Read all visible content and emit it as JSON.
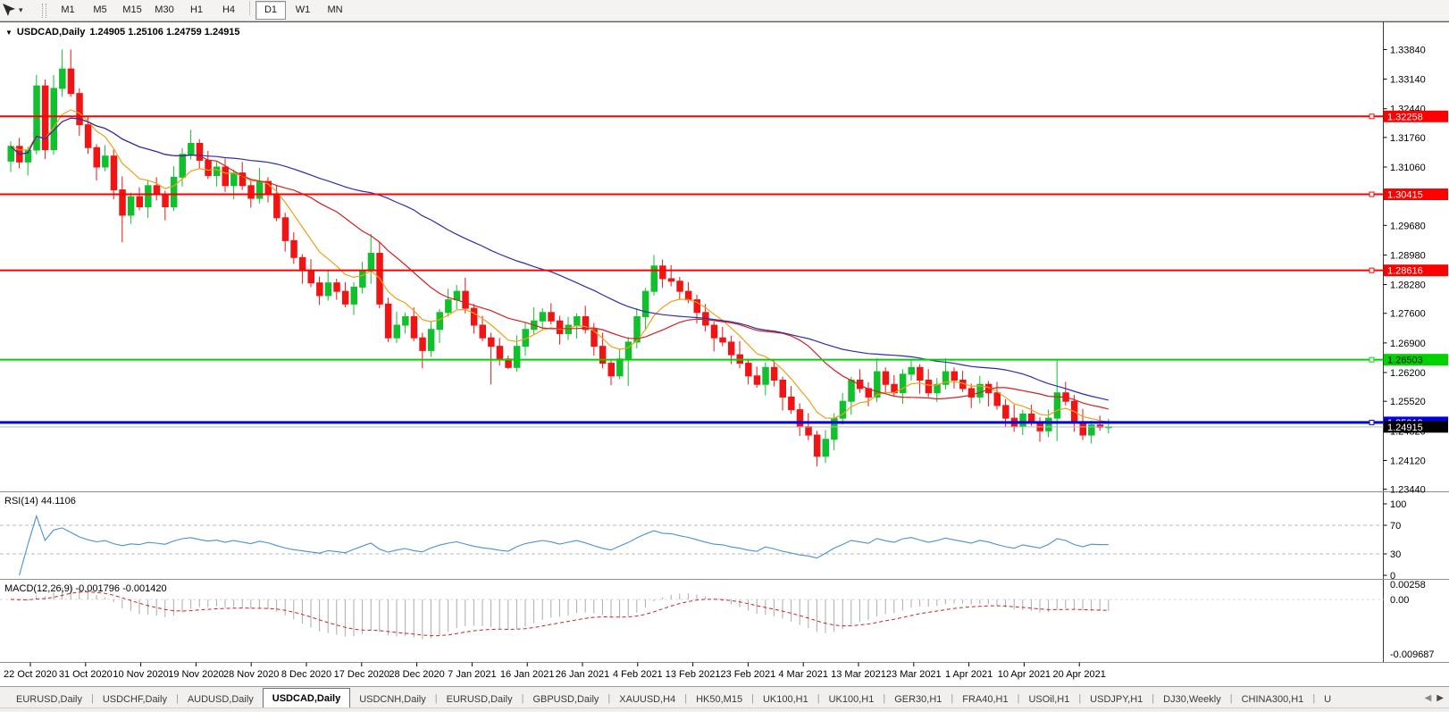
{
  "toolbar": {
    "timeframes": [
      "M1",
      "M5",
      "M15",
      "M30",
      "H1",
      "H4",
      "D1",
      "W1",
      "MN"
    ],
    "active_timeframe": "D1"
  },
  "chart": {
    "title": "USDCAD,Daily",
    "quote_line": "1.24905 1.25106 1.24759 1.24915"
  },
  "indicators": {
    "rsi_label": "RSI(14) 44.1106",
    "macd_label": "MACD(12,26,9) -0.001796 -0.001420"
  },
  "tabs": {
    "items": [
      "EURUSD,Daily",
      "USDCHF,Daily",
      "AUDUSD,Daily",
      "USDCAD,Daily",
      "USDCNH,Daily",
      "EURUSD,Daily",
      "GBPUSD,Daily",
      "XAUUSD,H4",
      "HK50,M15",
      "UK100,H1",
      "UK100,H1",
      "GER30,H1",
      "FRA40,H1",
      "USOil,H1",
      "USDJPY,H1",
      "DJ30,Weekly",
      "CHINA300,H1",
      "U"
    ],
    "active_index": 3
  },
  "chart_data": {
    "type": "candlestick",
    "symbol": "USDCAD",
    "timeframe": "Daily",
    "quote": {
      "open": "1.24905",
      "high": "1.25106",
      "low": "1.24759",
      "close": "1.24915"
    },
    "colors": {
      "up": "#10c02c",
      "down": "#f01414",
      "background": "#ffffff",
      "axis_text": "#000000"
    },
    "x_labels": [
      "22 Oct 2020",
      "31 Oct 2020",
      "10 Nov 2020",
      "19 Nov 2020",
      "28 Nov 2020",
      "8 Dec 2020",
      "17 Dec 2020",
      "28 Dec 2020",
      "7 Jan 2021",
      "16 Jan 2021",
      "26 Jan 2021",
      "4 Feb 2021",
      "13 Feb 2021",
      "23 Feb 2021",
      "4 Mar 2021",
      "13 Mar 2021",
      "23 Mar 2021",
      "1 Apr 2021",
      "10 Apr 2021",
      "20 Apr 2021"
    ],
    "y_ticks": [
      "1.33840",
      "1.33140",
      "1.32440",
      "1.31760",
      "1.31060",
      "1.29680",
      "1.28980",
      "1.28280",
      "1.27600",
      "1.26900",
      "1.26200",
      "1.25520",
      "1.24820",
      "1.24120",
      "1.23440"
    ],
    "levels": [
      {
        "price": 1.32258,
        "color": "#ff0000",
        "width": 2,
        "tag": "1.32258",
        "tag_text": "#ffffff"
      },
      {
        "price": 1.30415,
        "color": "#ff0000",
        "width": 2,
        "tag": "1.30415",
        "tag_text": "#ffffff"
      },
      {
        "price": 1.28616,
        "color": "#ff0000",
        "width": 2,
        "tag": "1.28616",
        "tag_text": "#ffffff"
      },
      {
        "price": 1.26503,
        "color": "#00d300",
        "width": 2,
        "tag": "1.26503",
        "tag_text": "#000000"
      },
      {
        "price": 1.25019,
        "color": "#0000dc",
        "width": 3,
        "tag": "1.25019",
        "tag_text": "#ffffff"
      },
      {
        "price": 1.24915,
        "color": "#b9b9b9",
        "width": 1,
        "tag": "1.24915",
        "tag_bg": "#000000",
        "tag_text": "#ffffff",
        "current": true
      }
    ],
    "moving_averages": [
      {
        "type": "ema",
        "period": 8,
        "color": "#efa018"
      },
      {
        "type": "sma",
        "period": 20,
        "color": "#d42020"
      },
      {
        "type": "sma",
        "period": 45,
        "color": "#2c2cb0"
      }
    ],
    "rsi": {
      "period": 14,
      "color": "#4a90d2",
      "levels": [
        30,
        70
      ],
      "axis_labels": [
        "100",
        "70",
        "30",
        "0"
      ],
      "current": 44.1106
    },
    "macd": {
      "fast": 12,
      "slow": 26,
      "signal_period": 9,
      "histogram_color": "#ababab",
      "signal_color": "#cc2222",
      "axis_labels": [
        "0.00258",
        "0.00",
        "-0.009687"
      ],
      "current_macd": -0.001796,
      "current_signal": -0.00142
    },
    "ohlc": [
      [
        1.312,
        1.3167,
        1.3094,
        1.3155
      ],
      [
        1.3155,
        1.3175,
        1.3103,
        1.3118
      ],
      [
        1.3118,
        1.3154,
        1.3086,
        1.3146
      ],
      [
        1.3146,
        1.3324,
        1.3136,
        1.3298
      ],
      [
        1.3298,
        1.3313,
        1.3125,
        1.3147
      ],
      [
        1.3147,
        1.3324,
        1.3135,
        1.3292
      ],
      [
        1.3292,
        1.3384,
        1.3272,
        1.3338
      ],
      [
        1.3338,
        1.3384,
        1.3272,
        1.328
      ],
      [
        1.328,
        1.3292,
        1.318,
        1.3206
      ],
      [
        1.3206,
        1.3226,
        1.3137,
        1.3152
      ],
      [
        1.3152,
        1.316,
        1.3074,
        1.3106
      ],
      [
        1.3106,
        1.3158,
        1.3096,
        1.3132
      ],
      [
        1.3132,
        1.3147,
        1.303,
        1.3052
      ],
      [
        1.3052,
        1.3084,
        1.2928,
        1.2992
      ],
      [
        1.2992,
        1.3046,
        1.2972,
        1.3036
      ],
      [
        1.3036,
        1.3058,
        1.3004,
        1.3012
      ],
      [
        1.3012,
        1.3074,
        1.2986,
        1.3062
      ],
      [
        1.3062,
        1.3082,
        1.3027,
        1.3042
      ],
      [
        1.3042,
        1.305,
        1.298,
        1.3012
      ],
      [
        1.3012,
        1.3108,
        1.3002,
        1.3082
      ],
      [
        1.3082,
        1.3151,
        1.306,
        1.3136
      ],
      [
        1.3136,
        1.3194,
        1.3124,
        1.3162
      ],
      [
        1.3162,
        1.3172,
        1.3102,
        1.3122
      ],
      [
        1.3122,
        1.3144,
        1.3078,
        1.3086
      ],
      [
        1.3086,
        1.3118,
        1.306,
        1.3106
      ],
      [
        1.3106,
        1.3126,
        1.3047,
        1.3062
      ],
      [
        1.3062,
        1.31,
        1.303,
        1.3092
      ],
      [
        1.3092,
        1.3118,
        1.3052,
        1.3062
      ],
      [
        1.3062,
        1.3077,
        1.301,
        1.3032
      ],
      [
        1.3032,
        1.3104,
        1.302,
        1.3072
      ],
      [
        1.3072,
        1.3082,
        1.3022,
        1.3042
      ],
      [
        1.3042,
        1.3064,
        1.2978,
        1.2986
      ],
      [
        1.2986,
        1.2998,
        1.2906,
        1.2932
      ],
      [
        1.2932,
        1.2952,
        1.2877,
        1.2892
      ],
      [
        1.2892,
        1.29,
        1.283,
        1.2862
      ],
      [
        1.2862,
        1.2888,
        1.2822,
        1.2832
      ],
      [
        1.2832,
        1.2847,
        1.278,
        1.2802
      ],
      [
        1.2802,
        1.2864,
        1.279,
        1.2832
      ],
      [
        1.2832,
        1.2842,
        1.2792,
        1.2812
      ],
      [
        1.2812,
        1.2834,
        1.2774,
        1.2782
      ],
      [
        1.2782,
        1.2834,
        1.2756,
        1.2822
      ],
      [
        1.2822,
        1.2882,
        1.2807,
        1.2862
      ],
      [
        1.2862,
        1.2948,
        1.283,
        1.2902
      ],
      [
        1.2902,
        1.2928,
        1.2772,
        1.2782
      ],
      [
        1.2782,
        1.2797,
        1.2692,
        1.2702
      ],
      [
        1.2702,
        1.2764,
        1.269,
        1.2732
      ],
      [
        1.2732,
        1.2762,
        1.2712,
        1.2752
      ],
      [
        1.2752,
        1.2774,
        1.2694,
        1.2702
      ],
      [
        1.2702,
        1.2714,
        1.263,
        1.2672
      ],
      [
        1.2672,
        1.2742,
        1.2657,
        1.2722
      ],
      [
        1.2722,
        1.277,
        1.269,
        1.2762
      ],
      [
        1.2762,
        1.2818,
        1.2752,
        1.2792
      ],
      [
        1.2792,
        1.2827,
        1.277,
        1.2812
      ],
      [
        1.2812,
        1.2844,
        1.276,
        1.2772
      ],
      [
        1.2772,
        1.2782,
        1.2712,
        1.2732
      ],
      [
        1.2732,
        1.2754,
        1.2694,
        1.2702
      ],
      [
        1.2702,
        1.2714,
        1.2592,
        1.2682
      ],
      [
        1.2682,
        1.2702,
        1.2637,
        1.2652
      ],
      [
        1.2652,
        1.266,
        1.2628,
        1.2632
      ],
      [
        1.2632,
        1.2708,
        1.2622,
        1.2682
      ],
      [
        1.2682,
        1.2737,
        1.266,
        1.2722
      ],
      [
        1.2722,
        1.2774,
        1.271,
        1.2742
      ],
      [
        1.2742,
        1.2772,
        1.2722,
        1.2762
      ],
      [
        1.2762,
        1.2784,
        1.2734,
        1.2742
      ],
      [
        1.2742,
        1.2754,
        1.2686,
        1.2712
      ],
      [
        1.2712,
        1.2752,
        1.2697,
        1.2732
      ],
      [
        1.2732,
        1.276,
        1.27,
        1.2752
      ],
      [
        1.2752,
        1.2778,
        1.2712,
        1.2722
      ],
      [
        1.2722,
        1.2737,
        1.266,
        1.2682
      ],
      [
        1.2682,
        1.2714,
        1.263,
        1.2642
      ],
      [
        1.2642,
        1.2652,
        1.259,
        1.2612
      ],
      [
        1.2612,
        1.2674,
        1.2604,
        1.2652
      ],
      [
        1.2652,
        1.2704,
        1.2588,
        1.2692
      ],
      [
        1.2692,
        1.2772,
        1.2677,
        1.2752
      ],
      [
        1.2752,
        1.282,
        1.272,
        1.2812
      ],
      [
        1.2812,
        1.2898,
        1.2802,
        1.2872
      ],
      [
        1.2872,
        1.2887,
        1.282,
        1.2842
      ],
      [
        1.2842,
        1.2874,
        1.2824,
        1.2836
      ],
      [
        1.2836,
        1.2846,
        1.2792,
        1.2812
      ],
      [
        1.2812,
        1.2834,
        1.2784,
        1.2792
      ],
      [
        1.2792,
        1.2804,
        1.2736,
        1.2762
      ],
      [
        1.2762,
        1.2782,
        1.2717,
        1.2732
      ],
      [
        1.2732,
        1.274,
        1.267,
        1.2702
      ],
      [
        1.2702,
        1.2728,
        1.2682,
        1.2692
      ],
      [
        1.2692,
        1.2707,
        1.264,
        1.2662
      ],
      [
        1.2662,
        1.2694,
        1.263,
        1.2642
      ],
      [
        1.2642,
        1.2652,
        1.2592,
        1.2612
      ],
      [
        1.2612,
        1.2634,
        1.2584,
        1.2592
      ],
      [
        1.2592,
        1.2644,
        1.2566,
        1.2632
      ],
      [
        1.2632,
        1.2652,
        1.2587,
        1.2602
      ],
      [
        1.2602,
        1.261,
        1.253,
        1.2562
      ],
      [
        1.2562,
        1.2588,
        1.2522,
        1.2532
      ],
      [
        1.2532,
        1.2547,
        1.247,
        1.2492
      ],
      [
        1.2492,
        1.2524,
        1.246,
        1.2472
      ],
      [
        1.2472,
        1.2482,
        1.2398,
        1.2422
      ],
      [
        1.2422,
        1.2484,
        1.2406,
        1.2462
      ],
      [
        1.2462,
        1.2524,
        1.2436,
        1.2512
      ],
      [
        1.2512,
        1.2572,
        1.2497,
        1.2552
      ],
      [
        1.2552,
        1.261,
        1.252,
        1.2602
      ],
      [
        1.2602,
        1.2628,
        1.2572,
        1.2582
      ],
      [
        1.2582,
        1.2597,
        1.254,
        1.2562
      ],
      [
        1.2562,
        1.2654,
        1.255,
        1.2622
      ],
      [
        1.2622,
        1.2632,
        1.2572,
        1.2592
      ],
      [
        1.2592,
        1.2614,
        1.2564,
        1.2572
      ],
      [
        1.2572,
        1.2628,
        1.2546,
        1.2616
      ],
      [
        1.2616,
        1.2652,
        1.2601,
        1.2632
      ],
      [
        1.2632,
        1.264,
        1.257,
        1.2602
      ],
      [
        1.2602,
        1.2628,
        1.2562,
        1.2572
      ],
      [
        1.2572,
        1.2607,
        1.255,
        1.2592
      ],
      [
        1.2592,
        1.2654,
        1.258,
        1.2622
      ],
      [
        1.2622,
        1.2632,
        1.2582,
        1.2602
      ],
      [
        1.2602,
        1.2624,
        1.2574,
        1.2582
      ],
      [
        1.2582,
        1.2594,
        1.2536,
        1.2562
      ],
      [
        1.2562,
        1.2612,
        1.2547,
        1.2592
      ],
      [
        1.2592,
        1.26,
        1.254,
        1.2572
      ],
      [
        1.2572,
        1.2598,
        1.2532,
        1.2542
      ],
      [
        1.2542,
        1.2557,
        1.249,
        1.2512
      ],
      [
        1.2512,
        1.2544,
        1.248,
        1.2492
      ],
      [
        1.2492,
        1.2532,
        1.2472,
        1.2522
      ],
      [
        1.2522,
        1.2544,
        1.2494,
        1.2502
      ],
      [
        1.2502,
        1.2514,
        1.2456,
        1.2482
      ],
      [
        1.2482,
        1.2532,
        1.2467,
        1.2512
      ],
      [
        1.2512,
        1.2652,
        1.2458,
        1.2572
      ],
      [
        1.2572,
        1.2598,
        1.2542,
        1.2552
      ],
      [
        1.2552,
        1.2567,
        1.248,
        1.2502
      ],
      [
        1.2502,
        1.2534,
        1.246,
        1.2472
      ],
      [
        1.2472,
        1.2506,
        1.2452,
        1.2496
      ],
      [
        1.2496,
        1.2518,
        1.24825,
        1.24905
      ],
      [
        1.24905,
        1.25106,
        1.24759,
        1.24915
      ]
    ]
  }
}
